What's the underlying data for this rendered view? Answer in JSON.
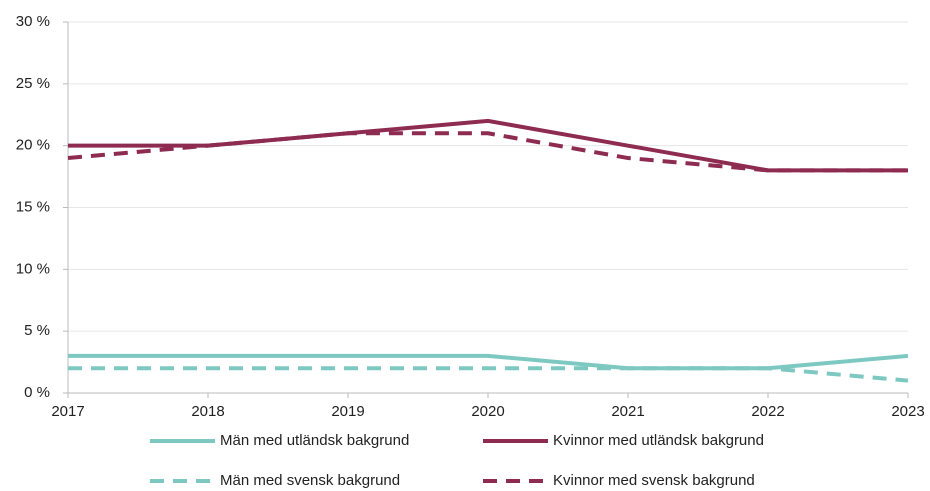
{
  "chart_data": {
    "type": "line",
    "x": [
      2017,
      2018,
      2019,
      2020,
      2021,
      2022,
      2023
    ],
    "xlim": [
      2017,
      2023
    ],
    "xticks": [
      2017,
      2018,
      2019,
      2020,
      2021,
      2022,
      2023
    ],
    "ylim": [
      0,
      30
    ],
    "yticks": [
      {
        "value": 0,
        "label": "0 %"
      },
      {
        "value": 5,
        "label": "5 %"
      },
      {
        "value": 10,
        "label": "10 %"
      },
      {
        "value": 15,
        "label": "15 %"
      },
      {
        "value": 20,
        "label": "20 %"
      },
      {
        "value": 25,
        "label": "25 %"
      },
      {
        "value": 30,
        "label": "30 %"
      }
    ],
    "grid": true,
    "legend": "bottom",
    "series": [
      {
        "name": "Män med utländsk bakgrund",
        "color": "#7ec8c2",
        "line_style": "solid",
        "values": [
          3,
          3,
          3,
          3,
          2,
          2,
          3
        ]
      },
      {
        "name": "Kvinnor med utländsk bakgrund",
        "color": "#8e2b50",
        "line_style": "solid",
        "values": [
          20,
          20,
          21,
          22,
          20,
          18,
          18
        ]
      },
      {
        "name": "Män med svensk bakgrund",
        "color": "#7ec8c2",
        "line_style": "dashed",
        "values": [
          2,
          2,
          2,
          2,
          2,
          2,
          1
        ]
      },
      {
        "name": "Kvinnor med svensk bakgrund",
        "color": "#8e2b50",
        "line_style": "dashed",
        "values": [
          19,
          20,
          21,
          21,
          19,
          18,
          18
        ]
      }
    ]
  }
}
